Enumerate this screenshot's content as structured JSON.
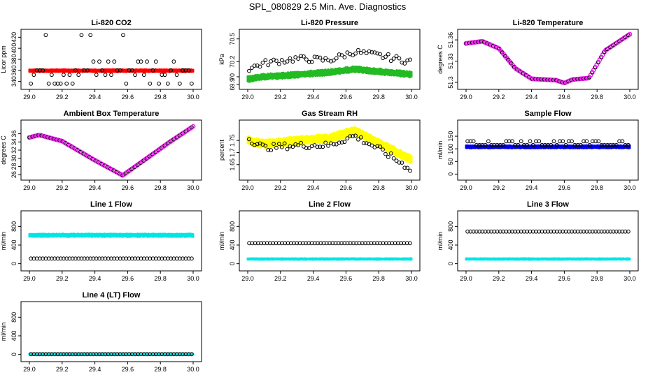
{
  "page_title": "SPL_080829  2.5 Min. Ave. Diagnostics",
  "colors": {
    "black": "#000000",
    "red": "#ff0000",
    "green": "#22bb22",
    "magenta": "#ee22ee",
    "yellow": "#ffff00",
    "blue": "#0000ee",
    "cyan": "#00e5e5"
  },
  "chart_data": [
    {
      "type": "scatter",
      "title": "Li-820 CO2",
      "ylabel": "Licor ppm",
      "xlim": [
        29.0,
        30.0
      ],
      "ylim": [
        332,
        428
      ],
      "xticks": [
        "29.0",
        "29.2",
        "29.4",
        "29.6",
        "29.8",
        "30.0"
      ],
      "yticks": [
        340,
        360,
        380,
        400,
        420
      ],
      "series": [
        {
          "color": "red",
          "kind": "band",
          "values": {
            "center": 359.5,
            "half_width": 2.5
          }
        },
        {
          "color": "black",
          "kind": "open",
          "values": {
            "levels": [
              336,
              352,
              360,
              376,
              424
            ]
          }
        }
      ]
    },
    {
      "type": "scatter",
      "title": "Li-820 Pressure",
      "ylabel": "kPa",
      "xlim": [
        29.0,
        30.0
      ],
      "ylim": [
        69.88,
        70.58
      ],
      "xticks": [
        "29.0",
        "29.2",
        "29.4",
        "29.6",
        "29.8",
        "30.0"
      ],
      "yticks": [
        69.9,
        70.0,
        70.2,
        70.5
      ],
      "series": [
        {
          "color": "green",
          "kind": "band",
          "values": {
            "curve": [
              [
                29.0,
                69.97
              ],
              [
                29.1,
                70.0
              ],
              [
                29.25,
                70.02
              ],
              [
                29.5,
                70.06
              ],
              [
                29.65,
                70.1
              ],
              [
                29.8,
                70.07
              ],
              [
                30.0,
                70.03
              ]
            ],
            "half_width": 0.04
          }
        },
        {
          "color": "black",
          "kind": "open",
          "values": {
            "curve": [
              [
                29.0,
                70.1
              ],
              [
                29.1,
                70.18
              ],
              [
                29.3,
                70.24
              ],
              [
                29.5,
                70.22
              ],
              [
                29.65,
                70.33
              ],
              [
                29.8,
                70.28
              ],
              [
                30.0,
                70.2
              ]
            ]
          }
        }
      ]
    },
    {
      "type": "scatter",
      "title": "Li-820 Temperature",
      "ylabel": "degrees C",
      "xlim": [
        29.0,
        30.0
      ],
      "ylim": [
        51.295,
        51.37
      ],
      "xticks": [
        "29.0",
        "29.2",
        "29.4",
        "29.6",
        "29.8",
        "30.0"
      ],
      "yticks": [
        51.3,
        51.33,
        51.36
      ],
      "series": [
        {
          "color": "magenta",
          "kind": "line",
          "values": {
            "curve": [
              [
                29.0,
                51.355
              ],
              [
                29.1,
                51.358
              ],
              [
                29.2,
                51.348
              ],
              [
                29.3,
                51.32
              ],
              [
                29.4,
                51.305
              ],
              [
                29.55,
                51.303
              ],
              [
                29.6,
                51.299
              ],
              [
                29.65,
                51.304
              ],
              [
                29.75,
                51.306
              ],
              [
                29.85,
                51.345
              ],
              [
                30.0,
                51.368
              ]
            ]
          }
        }
      ]
    },
    {
      "type": "scatter",
      "title": "Ambient Box Temperature",
      "ylabel": "degrees C",
      "xlim": [
        29.0,
        30.0
      ],
      "ylim": [
        25.5,
        38.5
      ],
      "xticks": [
        "29.0",
        "29.2",
        "29.4",
        "29.6",
        "29.8",
        "30.0"
      ],
      "yticks": [
        26,
        28,
        30,
        32,
        34,
        36
      ],
      "series": [
        {
          "color": "magenta",
          "kind": "line",
          "values": {
            "curve": [
              [
                29.0,
                35.1
              ],
              [
                29.06,
                35.7
              ],
              [
                29.2,
                34.2
              ],
              [
                29.4,
                29.5
              ],
              [
                29.57,
                25.8
              ],
              [
                29.7,
                29.5
              ],
              [
                29.85,
                33.8
              ],
              [
                30.0,
                37.8
              ]
            ]
          }
        }
      ]
    },
    {
      "type": "scatter",
      "title": "Gas Stream RH",
      "ylabel": "percent",
      "xlim": [
        29.0,
        30.0
      ],
      "ylim": [
        1.6,
        1.82
      ],
      "xticks": [
        "29.0",
        "29.2",
        "29.4",
        "29.6",
        "29.8",
        "30.0"
      ],
      "yticks": [
        1.65,
        1.7,
        1.75
      ],
      "series": [
        {
          "color": "yellow",
          "kind": "band",
          "values": {
            "curve": [
              [
                29.0,
                1.75
              ],
              [
                29.1,
                1.735
              ],
              [
                29.3,
                1.75
              ],
              [
                29.5,
                1.76
              ],
              [
                29.65,
                1.79
              ],
              [
                29.8,
                1.74
              ],
              [
                30.0,
                1.67
              ]
            ],
            "half_width": 0.018
          }
        },
        {
          "color": "black",
          "kind": "open",
          "values": {
            "curve": [
              [
                29.0,
                1.76
              ],
              [
                29.1,
                1.72
              ],
              [
                29.3,
                1.73
              ],
              [
                29.5,
                1.73
              ],
              [
                29.65,
                1.77
              ],
              [
                29.8,
                1.715
              ],
              [
                30.0,
                1.63
              ]
            ]
          }
        }
      ]
    },
    {
      "type": "scatter",
      "title": "Sample Flow",
      "ylabel": "ml/min",
      "xlim": [
        29.0,
        30.0
      ],
      "ylim": [
        -10,
        200
      ],
      "xticks": [
        "29.0",
        "29.2",
        "29.4",
        "29.6",
        "29.8",
        "30.0"
      ],
      "yticks": [
        0,
        50,
        100,
        150
      ],
      "series": [
        {
          "color": "blue",
          "kind": "band",
          "values": {
            "center": 108,
            "half_width": 6
          }
        },
        {
          "color": "black",
          "kind": "open",
          "values": {
            "levels": [
              115,
              130
            ]
          }
        }
      ]
    },
    {
      "type": "scatter",
      "title": "Line 1 Flow",
      "ylabel": "ml/min",
      "xlim": [
        29.0,
        30.0
      ],
      "ylim": [
        -80,
        1060
      ],
      "xticks": [
        "29.0",
        "29.2",
        "29.4",
        "29.6",
        "29.8",
        "30.0"
      ],
      "yticks": [
        0,
        400,
        800
      ],
      "series": [
        {
          "color": "cyan",
          "kind": "band",
          "values": {
            "center": 610,
            "half_width": 35
          }
        },
        {
          "color": "black",
          "kind": "open",
          "values": {
            "levels": [
              110
            ]
          }
        }
      ]
    },
    {
      "type": "scatter",
      "title": "Line 2 Flow",
      "ylabel": "ml/min",
      "xlim": [
        29.0,
        30.0
      ],
      "ylim": [
        -80,
        1060
      ],
      "xticks": [
        "29.0",
        "29.2",
        "29.4",
        "29.6",
        "29.8",
        "30.0"
      ],
      "yticks": [
        0,
        400,
        800
      ],
      "series": [
        {
          "color": "cyan",
          "kind": "band",
          "values": {
            "center": 100,
            "half_width": 15
          }
        },
        {
          "color": "black",
          "kind": "open",
          "values": {
            "levels": [
              440
            ]
          }
        }
      ]
    },
    {
      "type": "scatter",
      "title": "Line 3 Flow",
      "ylabel": "ml/min",
      "xlim": [
        29.0,
        30.0
      ],
      "ylim": [
        -80,
        1060
      ],
      "xticks": [
        "29.0",
        "29.2",
        "29.4",
        "29.6",
        "29.8",
        "30.0"
      ],
      "yticks": [
        0,
        400,
        800
      ],
      "series": [
        {
          "color": "cyan",
          "kind": "band",
          "values": {
            "center": 100,
            "half_width": 15
          }
        },
        {
          "color": "black",
          "kind": "open",
          "values": {
            "levels": [
              690
            ]
          }
        }
      ]
    },
    {
      "type": "scatter",
      "title": "Line 4 (LT) Flow",
      "ylabel": "ml/min",
      "xlim": [
        29.0,
        30.0
      ],
      "ylim": [
        -80,
        1060
      ],
      "xticks": [
        "29.0",
        "29.2",
        "29.4",
        "29.6",
        "29.8",
        "30.0"
      ],
      "yticks": [
        0,
        400,
        800
      ],
      "series": [
        {
          "color": "cyan",
          "kind": "band",
          "values": {
            "center": 5,
            "half_width": 8
          }
        },
        {
          "color": "black",
          "kind": "open",
          "values": {
            "levels": [
              5
            ]
          }
        }
      ]
    }
  ]
}
